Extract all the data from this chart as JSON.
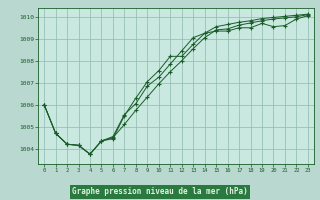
{
  "bg_color": "#b8d8d0",
  "plot_bg_color": "#c8e8e0",
  "grid_color": "#90b8b0",
  "line_color": "#1a5c28",
  "marker_color": "#1a5c28",
  "xlabel": "Graphe pression niveau de la mer (hPa)",
  "xlabel_bg": "#2a7a40",
  "xlabel_text_color": "#e0f0e0",
  "ylabel_color": "#1a5c28",
  "tick_color": "#1a5c28",
  "ylim": [
    1003.3,
    1010.4
  ],
  "xlim": [
    -0.5,
    23.5
  ],
  "yticks": [
    1004,
    1005,
    1006,
    1007,
    1008,
    1009,
    1010
  ],
  "xticks": [
    0,
    1,
    2,
    3,
    4,
    5,
    6,
    7,
    8,
    9,
    10,
    11,
    12,
    13,
    14,
    15,
    16,
    17,
    18,
    19,
    20,
    21,
    22,
    23
  ],
  "series1": [
    1006.0,
    1004.7,
    1004.2,
    1004.15,
    1003.75,
    1004.35,
    1004.45,
    1005.5,
    1006.3,
    1007.05,
    1007.55,
    1008.2,
    1008.2,
    1008.75,
    1009.25,
    1009.35,
    1009.35,
    1009.5,
    1009.5,
    1009.7,
    1009.55,
    1009.6,
    1009.9,
    1010.05
  ],
  "series2": [
    1006.0,
    1004.7,
    1004.2,
    1004.15,
    1003.75,
    1004.35,
    1004.5,
    1005.1,
    1005.75,
    1006.35,
    1006.95,
    1007.5,
    1008.0,
    1008.55,
    1009.05,
    1009.4,
    1009.45,
    1009.62,
    1009.72,
    1009.82,
    1009.9,
    1009.95,
    1010.0,
    1010.1
  ],
  "series3": [
    1006.0,
    1004.7,
    1004.2,
    1004.15,
    1003.75,
    1004.35,
    1004.55,
    1005.55,
    1006.05,
    1006.85,
    1007.25,
    1007.85,
    1008.45,
    1009.05,
    1009.25,
    1009.55,
    1009.65,
    1009.75,
    1009.82,
    1009.92,
    1009.97,
    1010.02,
    1010.07,
    1010.12
  ]
}
